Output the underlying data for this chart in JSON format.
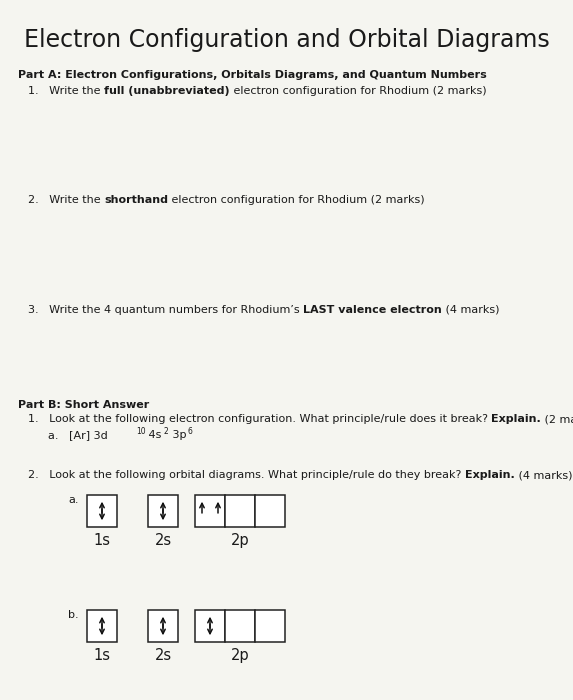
{
  "title": "Electron Configuration and Orbital Diagrams",
  "bg_color": "#f5f5f0",
  "title_fontsize": 17,
  "body_fontsize": 8.0,
  "label_fontsize": 10.5,
  "part_a_header": "Part A: Electron Configurations, Orbitals Diagrams, and Quantum Numbers",
  "part_b_header": "Part B: Short Answer",
  "text_color": "#1a1a1a",
  "fig_w": 5.73,
  "fig_h": 7.0,
  "dpi": 100
}
